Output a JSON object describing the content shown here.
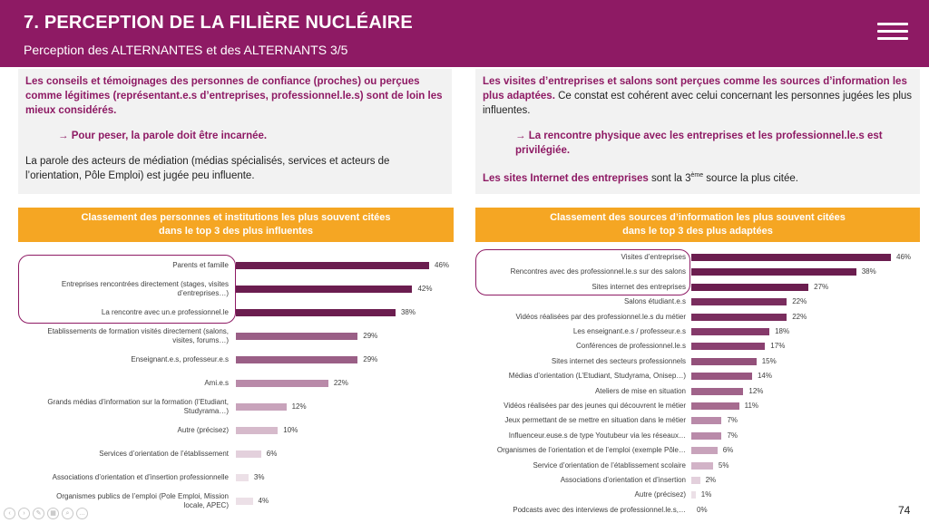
{
  "header": {
    "title": "7. PERCEPTION DE LA FILIÈRE NUCLÉAIRE",
    "subtitle": "Perception des ALTERNANTES et des ALTERNANTS 3/5"
  },
  "left_text": {
    "p1": "Les conseils et témoignages des personnes de confiance (proches) ou perçues comme légitimes (représentant.e.s d’entreprises, professionnel.le.s) sont de loin les mieux considérés.",
    "p2": "→ Pour peser, la parole doit être incarnée.",
    "p3": "La parole des acteurs de médiation (médias spécialisés, services et acteurs de l’orientation, Pôle Emploi) est jugée peu influente."
  },
  "right_text": {
    "p1_hl": "Les visites d’entreprises et salons sont perçues comme les sources d’information les plus adaptées.",
    "p1_rest": " Ce constat est cohérent avec celui concernant les personnes jugées les plus influentes.",
    "p2": "→ La rencontre physique avec les entreprises et les professionnel.le.s est privilégiée.",
    "p3_hl": "Les sites Internet des entreprises",
    "p3_mid": " sont la 3",
    "p3_sup": "ème",
    "p3_end": " source la plus citée."
  },
  "left_heading": {
    "line1": "Classement des personnes et institutions les plus souvent citées",
    "line2": "dans le top 3 des plus influentes"
  },
  "right_heading": {
    "line1": "Classement des sources d’information les plus souvent citées",
    "line2": "dans le top 3 des plus adaptées"
  },
  "page_number": "74",
  "colors": {
    "brand": "#8e1a64",
    "orange": "#f5a623"
  },
  "chart_data": [
    {
      "type": "bar",
      "orientation": "horizontal",
      "title": "Classement des personnes et institutions les plus souvent citées dans le top 3 des plus influentes",
      "categories": [
        [
          "Parents et famille"
        ],
        [
          "Entreprises rencontrées directement (stages, visites",
          "d’entreprises…)"
        ],
        [
          "La rencontre avec un.e professionnel.le"
        ],
        [
          "Etablissements de formation visités directement (salons,",
          "visites, forums…)"
        ],
        [
          "Enseignant.e.s, professeur.e.s"
        ],
        [
          "Ami.e.s"
        ],
        [
          "Grands médias d’information sur la formation (l’Etudiant,",
          "Studyrama…)"
        ],
        [
          "Autre (précisez)"
        ],
        [
          "Services d’orientation de l’établissement"
        ],
        [
          "Associations d’orientation et d’insertion professionnelle"
        ],
        [
          "Organismes publics de l’emploi (Pole Emploi, Mission",
          "locale, APEC)"
        ]
      ],
      "values": [
        46,
        42,
        38,
        29,
        29,
        22,
        12,
        10,
        6,
        3,
        4
      ],
      "labels": [
        "46%",
        "42%",
        "38%",
        "29%",
        "29%",
        "22%",
        "12%",
        "10%",
        "6%",
        "3%",
        "4%"
      ],
      "bar_colors": [
        "#6b1d4f",
        "#6b1d4f",
        "#6b1d4f",
        "#9a5f86",
        "#9a5f86",
        "#b98aa9",
        "#c8a3bb",
        "#d6bacb",
        "#e3d0dc",
        "#ece0e7",
        "#ece0e7"
      ],
      "highlighted_rows": [
        0,
        1,
        2
      ],
      "xlim": [
        0,
        46
      ]
    },
    {
      "type": "bar",
      "orientation": "horizontal",
      "title": "Classement des sources d’information les plus souvent citées dans le top 3 des plus adaptées",
      "categories": [
        [
          "Visites d’entreprises"
        ],
        [
          "Rencontres avec des professionnel.le.s sur des salons"
        ],
        [
          "Sites internet des entreprises"
        ],
        [
          "Salons étudiant.e.s"
        ],
        [
          "Vidéos réalisées par des professionnel.le.s du métier"
        ],
        [
          "Les enseignant.e.s / professeur.e.s"
        ],
        [
          "Conférences de professionnel.le.s"
        ],
        [
          "Sites internet des secteurs professionnels"
        ],
        [
          "Médias d’orientation (L’Etudiant, Studyrama, Onisep…)"
        ],
        [
          "Ateliers de mise en situation"
        ],
        [
          "Vidéos réalisées par des jeunes qui découvrent le métier"
        ],
        [
          "Jeux permettant de se mettre en situation dans le métier"
        ],
        [
          "Influenceur.euse.s de type Youtubeur via les réseaux…"
        ],
        [
          "Organismes de l’orientation et de l’emploi (exemple Pôle…"
        ],
        [
          "Service d’orientation de l’établissement scolaire"
        ],
        [
          "Associations d’orientation et d’insertion"
        ],
        [
          "Autre (précisez)"
        ],
        [
          "Podcasts avec des interviews de professionnel.le.s,…"
        ]
      ],
      "values": [
        46,
        38,
        27,
        22,
        22,
        18,
        17,
        15,
        14,
        12,
        11,
        7,
        7,
        6,
        5,
        2,
        1,
        0
      ],
      "labels": [
        "46%",
        "38%",
        "27%",
        "22%",
        "22%",
        "18%",
        "17%",
        "15%",
        "14%",
        "12%",
        "11%",
        "7%",
        "7%",
        "6%",
        "5%",
        "2%",
        "1%",
        "0%"
      ],
      "bar_colors": [
        "#6b1d4f",
        "#6b1d4f",
        "#6b1d4f",
        "#7a2d5e",
        "#7a2d5e",
        "#85396a",
        "#8a4070",
        "#93507a",
        "#985680",
        "#a0638a",
        "#a66b8f",
        "#b98aa9",
        "#b98aa9",
        "#c8a3bb",
        "#d2b3c7",
        "#e3d0dc",
        "#ece0e7",
        "#f3ebf0"
      ],
      "highlighted_rows": [
        0,
        1,
        2
      ],
      "xlim": [
        0,
        46
      ]
    }
  ]
}
